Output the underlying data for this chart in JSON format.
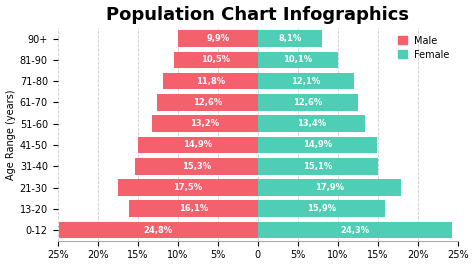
{
  "title": "Population Chart Infographics",
  "age_groups": [
    "0-12",
    "13-20",
    "21-30",
    "31-40",
    "41-50",
    "51-60",
    "61-70",
    "71-80",
    "81-90",
    "90+"
  ],
  "male_values": [
    24.8,
    16.1,
    17.5,
    15.3,
    14.9,
    13.2,
    12.6,
    11.8,
    10.5,
    9.9
  ],
  "female_values": [
    24.3,
    15.9,
    17.9,
    15.1,
    14.9,
    13.4,
    12.6,
    12.1,
    10.1,
    8.1
  ],
  "male_labels": [
    "24,8%",
    "16,1%",
    "17,5%",
    "15,3%",
    "14,9%",
    "13,2%",
    "12,6%",
    "11,8%",
    "10,5%",
    "9,9%"
  ],
  "female_labels": [
    "24,3%",
    "15,9%",
    "17,9%",
    "15,1%",
    "14,9%",
    "13,4%",
    "12,6%",
    "12,1%",
    "10,1%",
    "8,1%"
  ],
  "male_color": "#F4606C",
  "female_color": "#4ECFB5",
  "background_color": "#FFFFFF",
  "xlim": 25,
  "ylabel": "Age Range (years)",
  "title_fontsize": 13,
  "label_fontsize": 6.0,
  "axis_fontsize": 7,
  "ytick_fontsize": 7,
  "bar_height": 0.78
}
